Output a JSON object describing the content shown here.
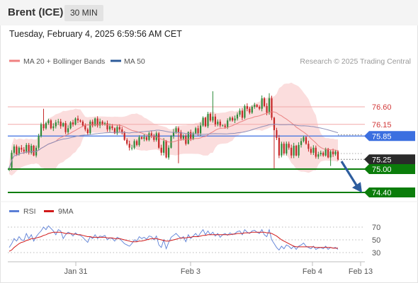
{
  "header": {
    "title": "Brent (ICE)",
    "interval": "30 MIN"
  },
  "timestamp": "Tuesday, February 4, 2025 6:59:56 AM CET",
  "copyright": "Research © 2025 Trading Central",
  "colors": {
    "up": "#2e8b3a",
    "down": "#c62828",
    "bollinger": "#fad2d2",
    "ma20": "#e87a7a",
    "ma50": "#8f8fb8",
    "support": "#0b7d0b",
    "pivot": "#3b6fe0",
    "current": "#2a2a2a",
    "resistance_line": "#f2a9a9",
    "rsi": "#5b7fd6",
    "rsi_ma": "#d11a1a",
    "arrow": "#2e5d9e"
  },
  "chart_data": [
    {
      "type": "candlestick",
      "legend": [
        {
          "name": "MA 20 + Bollinger Bands",
          "color": "#f08080"
        },
        {
          "name": "MA 50",
          "color": "#2d5b9a"
        }
      ],
      "x_ticks": [
        "Jan 31",
        "Feb 3",
        "Feb 4",
        "Feb 13"
      ],
      "ylim": [
        74.2,
        77.1
      ],
      "levels": [
        {
          "label": "76.60",
          "value": 76.6,
          "role": "resistance"
        },
        {
          "label": "76.15",
          "value": 76.15,
          "role": "resistance"
        },
        {
          "label": "75.85",
          "value": 75.85,
          "role": "pivot"
        },
        {
          "label": "75.25",
          "value": 75.25,
          "role": "last"
        },
        {
          "label": "75.00",
          "value": 75.0,
          "role": "support"
        },
        {
          "label": "74.40",
          "value": 74.4,
          "role": "support"
        }
      ],
      "closes": [
        75.03,
        75.42,
        75.58,
        75.38,
        75.55,
        75.5,
        75.45,
        75.62,
        75.42,
        75.6,
        75.35,
        75.55,
        75.85,
        76.15,
        76.05,
        76.18,
        76.25,
        76.05,
        76.1,
        76.2,
        76.22,
        76.1,
        76.18,
        75.95,
        76.05,
        76.2,
        76.15,
        76.3,
        76.25,
        76.22,
        76.12,
        76.02,
        75.92,
        76.22,
        76.12,
        76.3,
        76.12,
        76.22,
        76.15,
        76.18,
        76.02,
        76.1,
        76.05,
        75.92,
        76.08,
        76.02,
        75.95,
        75.75,
        75.65,
        75.55,
        75.55,
        75.72,
        75.62,
        75.82,
        75.78,
        75.82,
        75.75,
        75.92,
        75.85,
        75.75,
        75.92,
        75.55,
        75.42,
        75.72,
        75.3,
        75.55,
        75.85,
        75.95,
        76.05,
        75.95,
        75.78,
        75.85,
        75.65,
        75.95,
        75.78,
        75.92,
        76.05,
        75.92,
        76.12,
        76.32,
        76.1,
        76.42,
        76.25,
        76.35,
        76.15,
        76.22,
        76.12,
        76.12,
        76.08,
        76.25,
        76.32,
        76.25,
        76.3,
        76.4,
        76.5,
        76.32,
        76.62,
        76.55,
        76.45,
        76.6,
        76.65,
        76.6,
        76.55,
        76.82,
        76.62,
        76.45,
        76.82,
        76.32,
        76.0,
        75.8,
        75.35,
        75.65,
        75.4,
        75.65,
        75.55,
        75.35,
        75.6,
        75.35,
        75.62,
        75.72,
        75.82,
        75.65,
        75.52,
        75.42,
        75.55,
        75.32,
        75.38,
        75.42,
        75.35,
        75.52,
        75.3,
        75.45,
        75.38,
        75.45,
        75.25
      ]
    },
    {
      "type": "line",
      "legend": [
        {
          "name": "RSI",
          "color": "#5b7fd6"
        },
        {
          "name": "9MA",
          "color": "#d11a1a"
        }
      ],
      "y_ticks": [
        70,
        50,
        30
      ],
      "ylim": [
        20,
        80
      ],
      "rsi": [
        38,
        44,
        52,
        48,
        55,
        50,
        49,
        60,
        52,
        58,
        48,
        55,
        60,
        64,
        70,
        66,
        72,
        68,
        64,
        58,
        66,
        64,
        52,
        58,
        62,
        60,
        56,
        61,
        58,
        57,
        54,
        50,
        46,
        55,
        52,
        58,
        52,
        56,
        55,
        57,
        50,
        53,
        52,
        48,
        54,
        52,
        48,
        44,
        42,
        40,
        44,
        50,
        48,
        55,
        52,
        54,
        51,
        56,
        55,
        50,
        56,
        42,
        38,
        50,
        36,
        46,
        54,
        57,
        60,
        56,
        52,
        55,
        47,
        58,
        52,
        56,
        60,
        55,
        61,
        66,
        58,
        64,
        58,
        62,
        56,
        60,
        54,
        58,
        60,
        57,
        61,
        58,
        60,
        63,
        64,
        58,
        66,
        62,
        60,
        64,
        65,
        62,
        60,
        66,
        58,
        55,
        66,
        50,
        44,
        38,
        34,
        40,
        36,
        42,
        40,
        36,
        40,
        35,
        40,
        42,
        45,
        40,
        38,
        36,
        40,
        35,
        37,
        38,
        36,
        40,
        35,
        38,
        37,
        38,
        35
      ],
      "rsi_ma": [
        32,
        34,
        38,
        41,
        44,
        46,
        47,
        49,
        50,
        52,
        52,
        53,
        54,
        55,
        57,
        58,
        60,
        61,
        62,
        62,
        62,
        62,
        61,
        60,
        60,
        60,
        59,
        59,
        58,
        58,
        57,
        56,
        55,
        55,
        54,
        54,
        54,
        54,
        54,
        54,
        53,
        53,
        53,
        52,
        52,
        52,
        51,
        50,
        49,
        48,
        47,
        47,
        47,
        48,
        48,
        49,
        50,
        51,
        52,
        52,
        52,
        51,
        50,
        49,
        48,
        48,
        49,
        50,
        51,
        52,
        53,
        53,
        53,
        54,
        54,
        55,
        55,
        55,
        56,
        57,
        57,
        58,
        58,
        58,
        58,
        58,
        58,
        58,
        58,
        58,
        58,
        59,
        59,
        60,
        60,
        60,
        61,
        61,
        61,
        62,
        62,
        62,
        62,
        62,
        62,
        61,
        61,
        60,
        58,
        56,
        53,
        50,
        48,
        46,
        44,
        42,
        40,
        39,
        39,
        39,
        39,
        39,
        39,
        39,
        39,
        38,
        38,
        38,
        38,
        38,
        38,
        38,
        37,
        37,
        37
      ]
    }
  ]
}
